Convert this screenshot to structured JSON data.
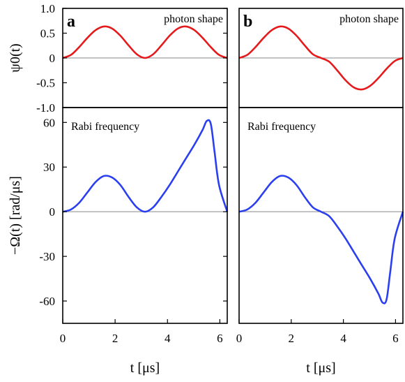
{
  "chart_data": [
    {
      "type": "line",
      "panel_letter": "a",
      "role": "top",
      "annotation": "photon shape",
      "ylabel": "ψ0(t)",
      "xlim": [
        0,
        6.283
      ],
      "ylim": [
        -1.0,
        1.0
      ],
      "yticks": [
        "1.0",
        "0.5",
        "0",
        "-0.5",
        "-1.0"
      ],
      "ytick_values": [
        1.0,
        0.5,
        0,
        -0.5,
        -1.0
      ],
      "series": [
        {
          "color": "#e41a1c",
          "x": [
            0,
            0.314,
            0.628,
            0.942,
            1.257,
            1.571,
            1.885,
            2.199,
            2.513,
            2.827,
            3.142,
            3.456,
            3.77,
            4.084,
            4.398,
            4.712,
            5.027,
            5.341,
            5.655,
            5.969,
            6.283
          ],
          "y": [
            0,
            0.062,
            0.219,
            0.406,
            0.562,
            0.635,
            0.594,
            0.451,
            0.255,
            0.076,
            0,
            0.076,
            0.255,
            0.451,
            0.594,
            0.635,
            0.562,
            0.406,
            0.219,
            0.062,
            0
          ]
        }
      ]
    },
    {
      "type": "line",
      "panel_letter": "b",
      "role": "top",
      "annotation": "photon shape",
      "ylabel": "",
      "xlim": [
        0,
        6.283
      ],
      "ylim": [
        -1.0,
        1.0
      ],
      "series": [
        {
          "color": "#e41a1c",
          "x": [
            0,
            0.314,
            0.628,
            0.942,
            1.257,
            1.571,
            1.885,
            2.199,
            2.513,
            2.827,
            3.142,
            3.456,
            3.77,
            4.084,
            4.398,
            4.712,
            5.027,
            5.341,
            5.655,
            5.969,
            6.283
          ],
          "y": [
            0,
            0.062,
            0.219,
            0.406,
            0.562,
            0.635,
            0.594,
            0.451,
            0.255,
            0.076,
            0,
            -0.076,
            -0.255,
            -0.451,
            -0.594,
            -0.635,
            -0.562,
            -0.406,
            -0.219,
            -0.062,
            0
          ]
        }
      ]
    },
    {
      "type": "line",
      "panel_letter": "",
      "role": "bottom",
      "annotation": "Rabi frequency",
      "ylabel": "−Ω(t) [rad/μs]",
      "xlabel": "t [μs]",
      "xlim": [
        0,
        6.283
      ],
      "ylim": [
        -75,
        70
      ],
      "xticks": [
        "0",
        "2",
        "4",
        "6"
      ],
      "xtick_values": [
        0,
        2,
        4,
        6
      ],
      "yticks": [
        "60",
        "30",
        "0",
        "-30",
        "-60"
      ],
      "ytick_values": [
        60,
        30,
        0,
        -30,
        -60
      ],
      "series": [
        {
          "color": "#2b3ff0",
          "x": [
            0,
            0.314,
            0.628,
            0.942,
            1.257,
            1.571,
            1.885,
            2.199,
            2.513,
            2.827,
            3.142,
            3.456,
            3.77,
            4.084,
            4.398,
            4.712,
            5.027,
            5.341,
            5.5,
            5.655,
            5.8,
            5.969,
            6.283
          ],
          "y": [
            0,
            1.5,
            6,
            13,
            20,
            24,
            23,
            18,
            10,
            3,
            0,
            3,
            10,
            18,
            27,
            36,
            45,
            55,
            61,
            59,
            40,
            18,
            0
          ]
        }
      ]
    },
    {
      "type": "line",
      "panel_letter": "",
      "role": "bottom",
      "annotation": "Rabi frequency",
      "ylabel": "",
      "xlabel": "t [μs]",
      "xlim": [
        0,
        6.283
      ],
      "ylim": [
        -75,
        70
      ],
      "xticks": [
        "0",
        "2",
        "4",
        "6"
      ],
      "xtick_values": [
        0,
        2,
        4,
        6
      ],
      "series": [
        {
          "color": "#2b3ff0",
          "x": [
            0,
            0.314,
            0.628,
            0.942,
            1.257,
            1.571,
            1.885,
            2.199,
            2.513,
            2.827,
            3.142,
            3.456,
            3.77,
            4.084,
            4.398,
            4.712,
            5.027,
            5.341,
            5.5,
            5.655,
            5.8,
            5.969,
            6.283
          ],
          "y": [
            0,
            1.5,
            6,
            13,
            20,
            24,
            23,
            18,
            10,
            3,
            0,
            -3,
            -10,
            -18,
            -27,
            -36,
            -45,
            -55,
            -61,
            -59,
            -40,
            -18,
            0
          ]
        }
      ]
    }
  ]
}
